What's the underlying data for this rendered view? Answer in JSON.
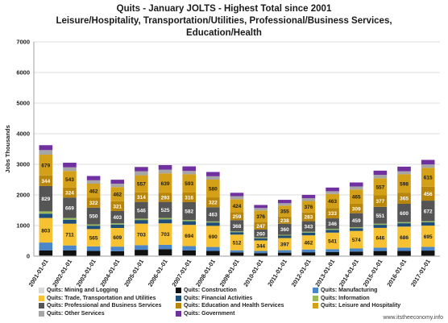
{
  "chart_data": {
    "type": "bar",
    "stacked": true,
    "title_lines": [
      "Quits - January JOLTS - Highest Total since 2001",
      "Leisure/Hospitality, Transportation/Utilities, Professional/Business Services,",
      "Education/Health"
    ],
    "ylabel": "Jobs Thousands",
    "ylim": [
      0,
      7000
    ],
    "yticks": [
      0,
      1000,
      2000,
      3000,
      4000,
      5000,
      6000,
      7000
    ],
    "grid": true,
    "legend_position": "bottom",
    "categories": [
      "2001-01-01",
      "2002-01-01",
      "2003-01-01",
      "2004-01-01",
      "2005-01-01",
      "2006-01-01",
      "2007-01-01",
      "2008-01-01",
      "2009-01-01",
      "2010-01-01",
      "2011-01-01",
      "2012-01-01",
      "2013-01-01",
      "2014-01-01",
      "2015-01-01",
      "2016-01-01",
      "2017-01-01"
    ],
    "series": [
      {
        "name": "Quits: Mining and Logging",
        "color": "#d9d9d9",
        "values": [
          15,
          10,
          10,
          12,
          18,
          20,
          18,
          20,
          12,
          10,
          15,
          18,
          18,
          20,
          18,
          10,
          12
        ]
      },
      {
        "name": "Quits: Construction",
        "color": "#111111",
        "values": [
          170,
          180,
          160,
          150,
          190,
          210,
          170,
          150,
          110,
          90,
          100,
          110,
          120,
          130,
          150,
          160,
          170
        ]
      },
      {
        "name": "Quits: Manufacturing",
        "color": "#4a86c8",
        "values": [
          260,
          160,
          150,
          150,
          150,
          140,
          140,
          130,
          70,
          70,
          80,
          90,
          90,
          100,
          110,
          110,
          120
        ]
      },
      {
        "name": "Quits: Trade, Transportation and Utilities",
        "color": "#f6c232",
        "values": [
          803,
          711,
          565,
          609,
          703,
          703,
          694,
          690,
          512,
          344,
          397,
          462,
          541,
          574,
          646,
          686,
          695
        ]
      },
      {
        "name": "Quits: Financial Activities",
        "color": "#1f4e79",
        "values": [
          140,
          130,
          110,
          110,
          120,
          130,
          120,
          110,
          80,
          70,
          80,
          90,
          90,
          90,
          100,
          110,
          110
        ]
      },
      {
        "name": "Quits: Information",
        "color": "#9bbb59",
        "values": [
          75,
          55,
          40,
          40,
          45,
          45,
          40,
          35,
          25,
          25,
          25,
          30,
          30,
          30,
          35,
          35,
          35
        ]
      },
      {
        "name": "Quits: Professional and Business Services",
        "color": "#555555",
        "values": [
          829,
          669,
          550,
          403,
          546,
          525,
          582,
          463,
          368,
          260,
          360,
          343,
          346,
          459,
          551,
          600,
          672
        ]
      },
      {
        "name": "Quits: Education and Health Services",
        "color": "#b8860b",
        "values": [
          344,
          324,
          322,
          321,
          314,
          293,
          316,
          322,
          259,
          247,
          238,
          283,
          333,
          309,
          377,
          365,
          456
        ]
      },
      {
        "name": "Quits: Leisure and Hospitality",
        "color": "#d4a017",
        "values": [
          679,
          543,
          462,
          462,
          557,
          639,
          593,
          580,
          424,
          376,
          355,
          376,
          463,
          465,
          557,
          598,
          615
        ]
      },
      {
        "name": "Quits: Other Services",
        "color": "#a6a6a6",
        "values": [
          150,
          120,
          110,
          110,
          130,
          120,
          110,
          110,
          100,
          80,
          80,
          90,
          90,
          100,
          110,
          100,
          110
        ]
      },
      {
        "name": "Quits: Government",
        "color": "#7030a0",
        "values": [
          160,
          150,
          140,
          130,
          140,
          150,
          150,
          140,
          110,
          100,
          110,
          110,
          120,
          130,
          140,
          150,
          150
        ]
      }
    ],
    "data_labels": [
      "Quits: Trade, Transportation and Utilities",
      "Quits: Professional and Business Services",
      "Quits: Education and Health Services",
      "Quits: Leisure and Hospitality"
    ]
  },
  "credit": "www.itstheeconomy.info"
}
